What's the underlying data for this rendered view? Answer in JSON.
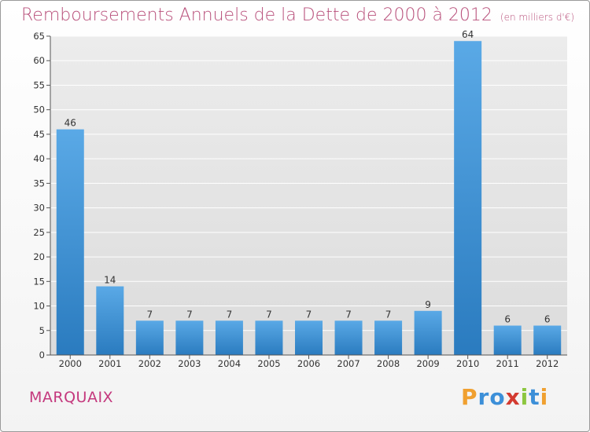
{
  "title": "Remboursements Annuels de la Dette de 2000 à 2012",
  "unit": "(en milliers d'€)",
  "town": "MARQUAIX",
  "logo": {
    "text": "Proxiti",
    "letters": [
      "P",
      "r",
      "o",
      "x",
      "i",
      "t",
      "i"
    ],
    "colors": [
      "#f0a030",
      "#3c8fd8",
      "#3c8fd8",
      "#d33a30",
      "#8cc63f",
      "#3c8fd8",
      "#f0a030"
    ]
  },
  "colors": {
    "bar_top": "#5aa9e6",
    "bar_bottom": "#2a7bbf",
    "title": "#b84f7a",
    "town": "#c4387d"
  },
  "chart_data": {
    "type": "bar",
    "title": "Remboursements Annuels de la Dette de 2000 à 2012",
    "subtitle": "(en milliers d'€)",
    "xlabel": "",
    "ylabel": "",
    "categories": [
      "2000",
      "2001",
      "2002",
      "2003",
      "2004",
      "2005",
      "2006",
      "2007",
      "2008",
      "2009",
      "2010",
      "2011",
      "2012"
    ],
    "values": [
      46,
      14,
      7,
      7,
      7,
      7,
      7,
      7,
      7,
      9,
      64,
      6,
      6
    ],
    "ylim": [
      0,
      65
    ],
    "yticks": [
      0,
      5,
      10,
      15,
      20,
      25,
      30,
      35,
      40,
      45,
      50,
      55,
      60,
      65
    ],
    "grid": true,
    "legend": "none"
  }
}
